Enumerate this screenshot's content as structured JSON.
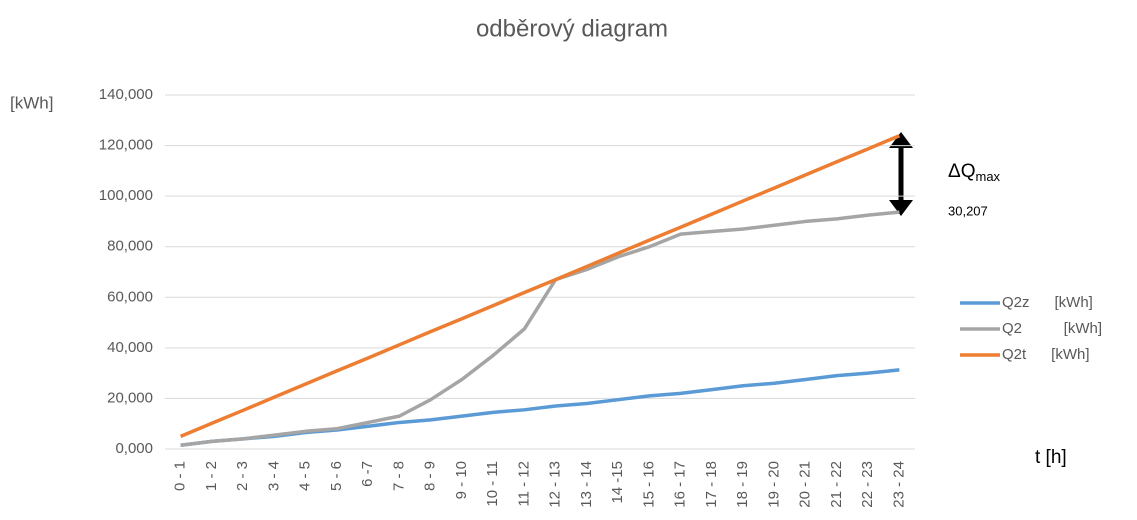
{
  "chart_data": {
    "type": "line",
    "title": "odběrový diagram",
    "y_label": "[kWh]",
    "x_label": "t [h]",
    "categories": [
      "0 - 1",
      "1 - 2",
      "2 - 3",
      "3 - 4",
      "4 - 5",
      "5 - 6",
      "6 -7",
      "7 - 8",
      "8 - 9",
      "9 - 10",
      "10 - 11",
      "11 - 12",
      "12 - 13",
      "13 - 14",
      "14 -15",
      "15 - 16",
      "16 - 17",
      "17 - 18",
      "18 - 19",
      "19 - 20",
      "20 - 21",
      "21 - 22",
      "22 - 23",
      "23 - 24"
    ],
    "series": [
      {
        "name": "Q2z      [kWh]",
        "color": "#5b9bd5",
        "values": [
          1.5,
          3,
          4,
          5,
          6.5,
          7.5,
          9,
          10.5,
          11.5,
          13,
          14.5,
          15.5,
          17,
          18,
          19.5,
          21,
          22,
          23.5,
          25,
          26,
          27.5,
          29,
          30,
          31.3
        ]
      },
      {
        "name": "Q2          [kWh]",
        "color": "#a5a5a5",
        "values": [
          1.5,
          3,
          4,
          5.5,
          7,
          8,
          10.5,
          13,
          19.5,
          27.5,
          37,
          47.5,
          67,
          71,
          76,
          80,
          85,
          86,
          87,
          88.5,
          90,
          91,
          92.5,
          93.7
        ]
      },
      {
        "name": "Q2t      [kWh]",
        "color": "#ed7d31",
        "values": [
          5,
          10.2,
          15.3,
          20.5,
          25.7,
          30.9,
          36,
          41.2,
          46.4,
          51.5,
          56.7,
          61.9,
          67,
          72.2,
          77.4,
          82.6,
          87.7,
          92.9,
          98.1,
          103.2,
          108.4,
          113.6,
          118.7,
          123.9
        ]
      }
    ],
    "ylim": [
      0,
      140
    ],
    "yticks": [
      {
        "value": 0,
        "label": "0,000"
      },
      {
        "value": 20,
        "label": "20,000"
      },
      {
        "value": 40,
        "label": "40,000"
      },
      {
        "value": 60,
        "label": "60,000"
      },
      {
        "value": 80,
        "label": "80,000"
      },
      {
        "value": 100,
        "label": "100,000"
      },
      {
        "value": 120,
        "label": "120,000"
      },
      {
        "value": 140,
        "label": "140,000"
      }
    ],
    "grid": true,
    "annotation": {
      "text": "ΔQ",
      "subscript": "max",
      "value_label": "30,207"
    }
  }
}
